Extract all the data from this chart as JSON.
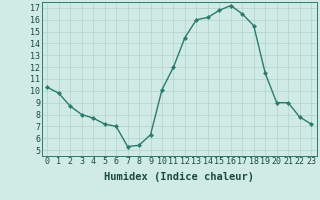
{
  "x": [
    0,
    1,
    2,
    3,
    4,
    5,
    6,
    7,
    8,
    9,
    10,
    11,
    12,
    13,
    14,
    15,
    16,
    17,
    18,
    19,
    20,
    21,
    22,
    23
  ],
  "y": [
    10.3,
    9.8,
    8.7,
    8.0,
    7.7,
    7.2,
    7.0,
    5.3,
    5.4,
    6.3,
    10.1,
    12.0,
    14.5,
    16.0,
    16.2,
    16.8,
    17.2,
    16.5,
    15.5,
    11.5,
    9.0,
    9.0,
    7.8,
    7.2
  ],
  "line_color": "#2d7a6e",
  "marker_color": "#2d7a6e",
  "bg_color": "#d0ebe5",
  "grid_color": "#b0d4cc",
  "xlabel": "Humidex (Indice chaleur)",
  "xlim": [
    -0.5,
    23.5
  ],
  "ylim": [
    4.5,
    17.5
  ],
  "yticks": [
    5,
    6,
    7,
    8,
    9,
    10,
    11,
    12,
    13,
    14,
    15,
    16,
    17
  ],
  "xticks": [
    0,
    1,
    2,
    3,
    4,
    5,
    6,
    7,
    8,
    9,
    10,
    11,
    12,
    13,
    14,
    15,
    16,
    17,
    18,
    19,
    20,
    21,
    22,
    23
  ],
  "tick_fontsize": 6,
  "label_fontsize": 7.5
}
